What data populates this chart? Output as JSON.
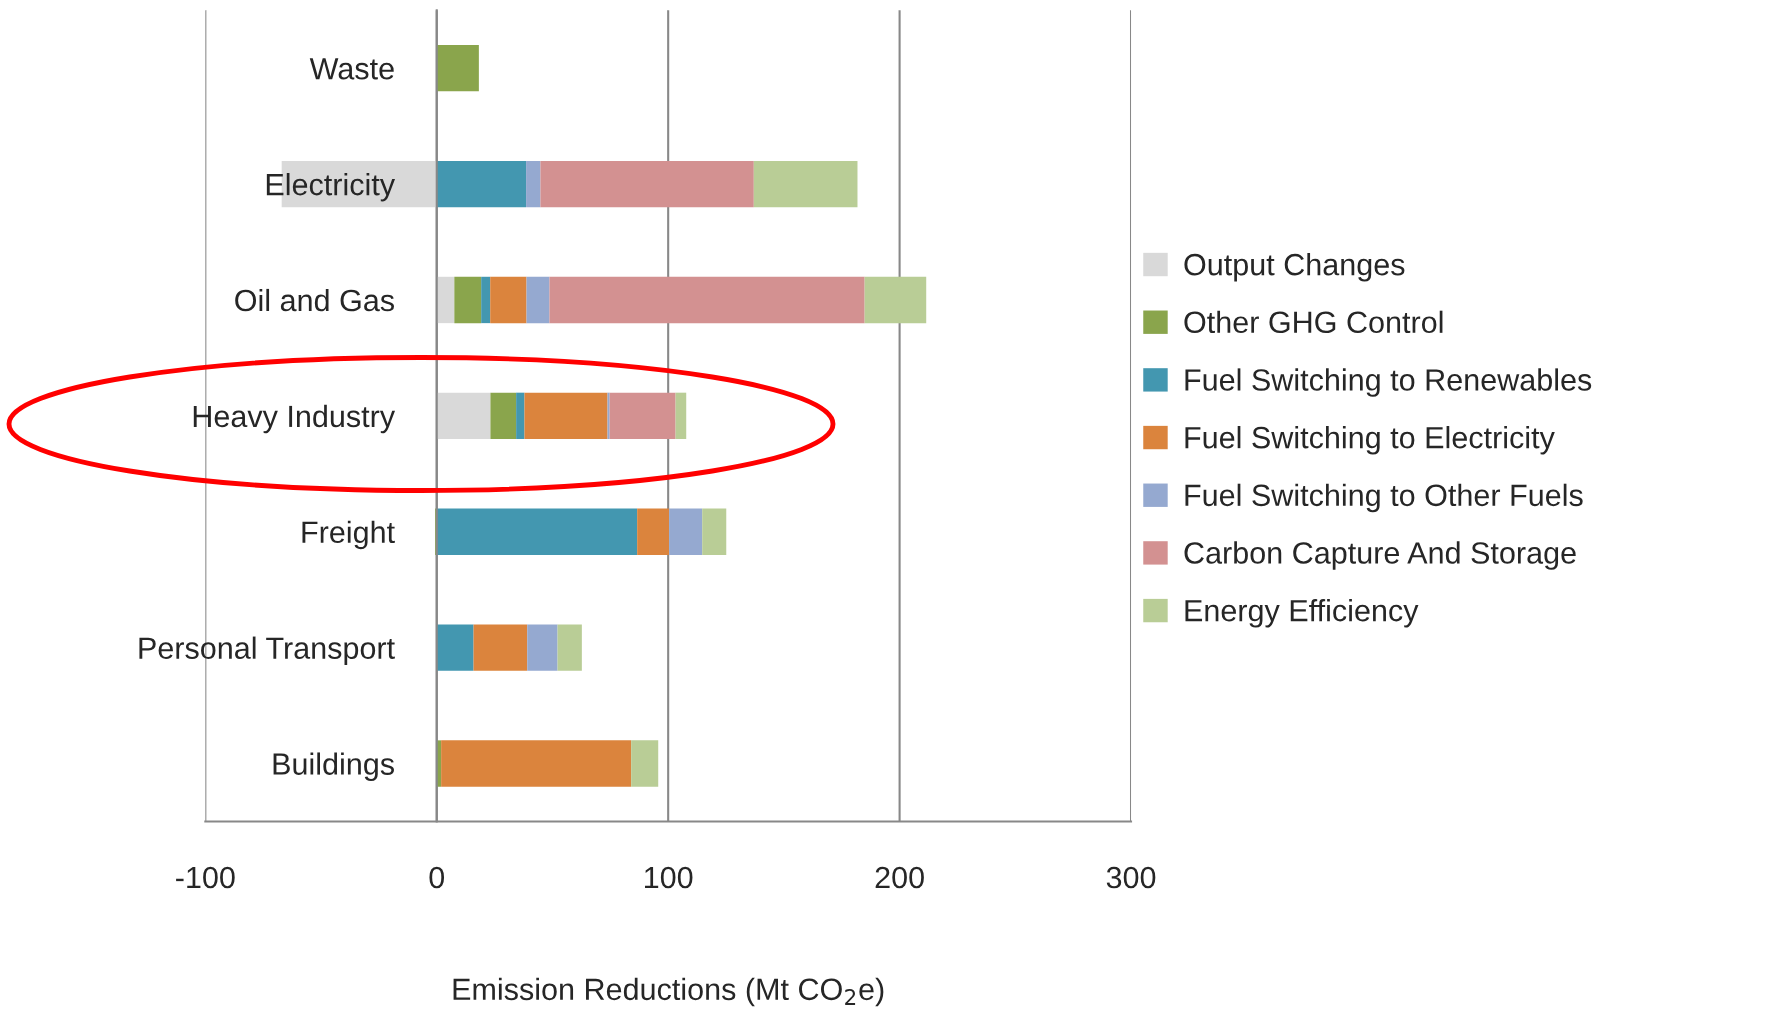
{
  "chart_data": {
    "type": "bar",
    "orientation": "horizontal",
    "stacked": true,
    "xlabel": "Emission Reductions (Mt CO$_{2}$e)",
    "categories": [
      "Waste",
      "Electricity",
      "Oil and Gas",
      "Heavy Industry",
      "Freight",
      "Personal Transport",
      "Buildings"
    ],
    "series": [
      {
        "name": "Output Changes",
        "color": "#d9d9d9",
        "values": [
          0,
          -67,
          7.6,
          23.2,
          0,
          0,
          0
        ]
      },
      {
        "name": "Other GHG Control",
        "color": "#8aa54c",
        "values": [
          18.2,
          0,
          11.6,
          11.1,
          -0.7,
          0,
          1.9
        ]
      },
      {
        "name": "Fuel Switching to Renewables",
        "color": "#4397b0",
        "values": [
          0,
          38.6,
          3.9,
          3.6,
          86.6,
          15.9,
          0
        ]
      },
      {
        "name": "Fuel Switching to Electricity",
        "color": "#db843d",
        "values": [
          0,
          0,
          15.7,
          35.9,
          13.8,
          23.2,
          82.1
        ]
      },
      {
        "name": "Fuel Switching to Other Fuels",
        "color": "#95a9d0",
        "values": [
          0,
          6.2,
          9.9,
          0.9,
          14.3,
          13.1,
          0
        ]
      },
      {
        "name": "Carbon Capture And Storage",
        "color": "#d39191",
        "values": [
          0,
          92.2,
          136.2,
          28.5,
          0,
          0,
          0
        ]
      },
      {
        "name": "Energy Efficiency",
        "color": "#b9cd96",
        "values": [
          0,
          44.8,
          26.6,
          4.6,
          10.4,
          10.5,
          11.7
        ]
      }
    ],
    "xlim": [
      -100,
      300
    ],
    "xticks": [
      -100,
      0,
      100,
      200,
      300
    ],
    "grid": "x",
    "legend": "right"
  }
}
